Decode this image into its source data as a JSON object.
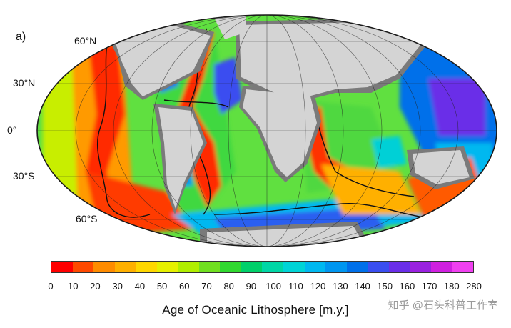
{
  "panel_label": "a)",
  "latitude_labels": [
    "60°N",
    "30°N",
    "0°",
    "30°S",
    "60°S"
  ],
  "legend": {
    "title": "Age of Oceanic Lithosphere [m.y.]",
    "ticks": [
      "0",
      "10",
      "20",
      "30",
      "40",
      "50",
      "60",
      "70",
      "80",
      "90",
      "100",
      "110",
      "120",
      "130",
      "140",
      "150",
      "160",
      "170",
      "180",
      "280"
    ],
    "colors": [
      "#ff0000",
      "#ff4a00",
      "#ff8c00",
      "#ffb000",
      "#ffd700",
      "#e6f000",
      "#b0ee00",
      "#70e020",
      "#30d830",
      "#00d06a",
      "#00d6a6",
      "#00d4d6",
      "#00b8f0",
      "#0096f0",
      "#0070ea",
      "#3a4ef0",
      "#6a2ee8",
      "#9a22e0",
      "#d020e0",
      "#f040f0"
    ]
  },
  "watermark": "知乎 @石头科普工作室",
  "colors": {
    "land": "#d4d4d4",
    "shelf": "#7a7a7a",
    "ocean_frame": "#1a1a1a"
  }
}
